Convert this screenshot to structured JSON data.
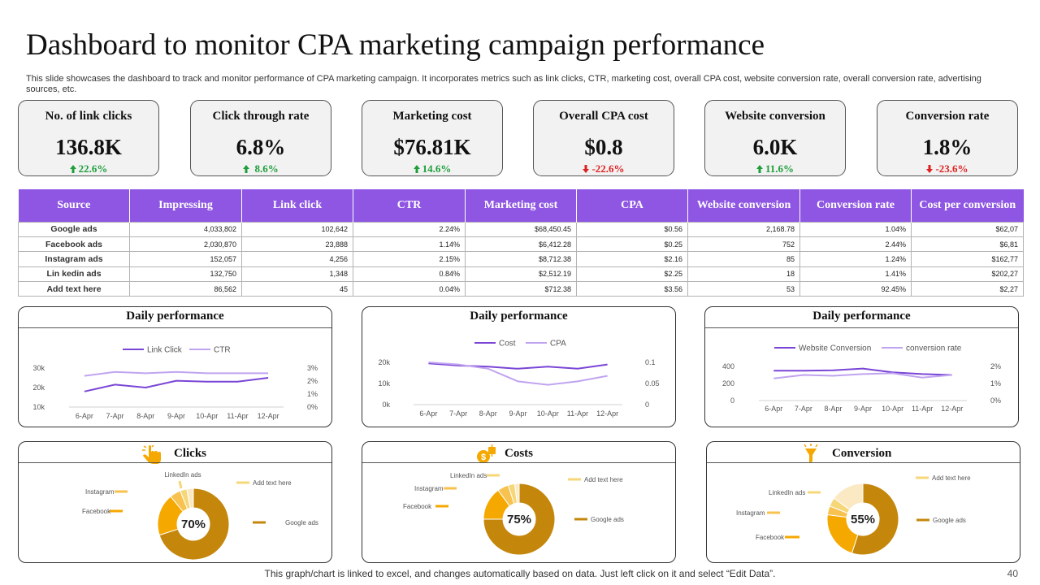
{
  "title": "Dashboard to monitor CPA marketing campaign performance",
  "subtitle": "This slide showcases the dashboard to track and monitor performance of CPA marketing campaign. It incorporates metrics such as link clicks, CTR, marketing cost, overall CPA cost, website conversion rate, overall conversion rate, advertising sources, etc.",
  "colors": {
    "purple": "#8e56e2",
    "up": "#1e9e3a",
    "down": "#e02020",
    "gold": "#c4870c",
    "amber": "#f5a800"
  },
  "kpis": [
    {
      "label": "No. of link clicks",
      "value": "136.8K",
      "change": "22.6%",
      "direction": "up"
    },
    {
      "label": "Click through  rate",
      "value": "6.8%",
      "change": " 8.6%",
      "direction": "up"
    },
    {
      "label": "Marketing cost",
      "value": "$76.81K",
      "change": "14.6%",
      "direction": "up"
    },
    {
      "label": "Overall CPA cost",
      "value": "$0.8",
      "change": "-22.6%",
      "direction": "down"
    },
    {
      "label": "Website conversion",
      "value": "6.0K",
      "change": "11.6%",
      "direction": "up"
    },
    {
      "label": "Conversion rate",
      "value": "1.8%",
      "change": "-23.6%",
      "direction": "down"
    }
  ],
  "table": {
    "headers": [
      "Source",
      "Impressing",
      "Link click",
      "CTR",
      "Marketing cost",
      "CPA",
      "Website conversion",
      "Conversion rate",
      "Cost per conversion"
    ],
    "rows": [
      [
        "Google ads",
        "4,033,802",
        "102,642",
        "2.24%",
        "$68,450.45",
        "$0.56",
        "2,168.78",
        "1.04%",
        "$62,07"
      ],
      [
        "Facebook ads",
        "2,030,870",
        "23,888",
        "1.14%",
        "$6,412.28",
        "$0.25",
        "752",
        "2.44%",
        "$6,81"
      ],
      [
        "Instagram ads",
        "152,057",
        "4,256",
        "2.15%",
        "$8,712.38",
        "$2.16",
        "85",
        "1.24%",
        "$162,77"
      ],
      [
        "Lin kedin ads",
        "132,750",
        "1,348",
        "0.84%",
        "$2,512.19",
        "$2.25",
        "18",
        "1.41%",
        "$202,27"
      ],
      [
        "Add text here",
        "86,562",
        "45",
        "0.04%",
        "$712.38",
        "$3.56",
        "53",
        "92.45%",
        "$2,27"
      ]
    ]
  },
  "chart_data": [
    {
      "type": "line",
      "title": "Daily performance",
      "categories": [
        "6-Apr",
        "7-Apr",
        "8-Apr",
        "9-Apr",
        "10-Apr",
        "11-Apr",
        "12-Apr"
      ],
      "series": [
        {
          "name": "Link Click",
          "axis": "left",
          "values": [
            18000,
            21500,
            20000,
            23500,
            23000,
            23000,
            25000
          ]
        },
        {
          "name": "CTR",
          "axis": "right",
          "values": [
            0.024,
            0.027,
            0.026,
            0.027,
            0.026,
            0.026,
            0.026
          ]
        }
      ],
      "left_axis": {
        "ticks": [
          "10k",
          "20k",
          "30k"
        ],
        "range": [
          10000,
          30000
        ]
      },
      "right_axis": {
        "ticks": [
          "0%",
          "1%",
          "2%",
          "3%"
        ],
        "range": [
          0,
          0.03
        ]
      }
    },
    {
      "type": "line",
      "title": "Daily performance",
      "categories": [
        "6-Apr",
        "7-Apr",
        "8-Apr",
        "9-Apr",
        "10-Apr",
        "11-Apr",
        "12-Apr"
      ],
      "series": [
        {
          "name": "Cost",
          "axis": "left",
          "values": [
            19500,
            18500,
            18000,
            17000,
            18000,
            17000,
            19000
          ]
        },
        {
          "name": "CPA",
          "axis": "right",
          "values": [
            0.1,
            0.095,
            0.085,
            0.055,
            0.047,
            0.055,
            0.068
          ]
        }
      ],
      "left_axis": {
        "ticks": [
          "0k",
          "10k",
          "20k"
        ],
        "range": [
          0,
          20000
        ]
      },
      "right_axis": {
        "ticks": [
          "0",
          "0.05",
          "0.1"
        ],
        "range": [
          0,
          0.1
        ]
      }
    },
    {
      "type": "line",
      "title": "Daily performance",
      "categories": [
        "6-Apr",
        "7-Apr",
        "8-Apr",
        "9-Apr",
        "10-Apr",
        "11-Apr",
        "12-Apr"
      ],
      "series": [
        {
          "name": "Website Conversion",
          "axis": "left",
          "values": [
            350,
            350,
            355,
            375,
            330,
            310,
            300
          ]
        },
        {
          "name": "conversion rate",
          "axis": "right",
          "values": [
            0.013,
            0.015,
            0.0145,
            0.0155,
            0.016,
            0.0135,
            0.015
          ]
        }
      ],
      "left_axis": {
        "ticks": [
          "0",
          "200",
          "400"
        ],
        "range": [
          0,
          400
        ]
      },
      "right_axis": {
        "ticks": [
          "0%",
          "1%",
          "2%"
        ],
        "range": [
          0,
          0.02
        ]
      }
    },
    {
      "type": "pie",
      "title": "Clicks",
      "center_label": "70%",
      "slices": [
        {
          "label": "Google ads",
          "value": 70
        },
        {
          "label": "Facebook",
          "value": 19
        },
        {
          "label": "Instagram",
          "value": 5
        },
        {
          "label": "LinkedIn ads",
          "value": 3
        },
        {
          "label": "Add text here",
          "value": 3
        }
      ]
    },
    {
      "type": "pie",
      "title": "Costs",
      "center_label": "75%",
      "slices": [
        {
          "label": "Google ads",
          "value": 75
        },
        {
          "label": "Facebook",
          "value": 15
        },
        {
          "label": "Instagram",
          "value": 5
        },
        {
          "label": "LinkedIn ads",
          "value": 3
        },
        {
          "label": "Add text here",
          "value": 2
        }
      ]
    },
    {
      "type": "pie",
      "title": "Conversion",
      "center_label": "55%",
      "slices": [
        {
          "label": "Google ads",
          "value": 55
        },
        {
          "label": "Facebook",
          "value": 22
        },
        {
          "label": "Instagram",
          "value": 4
        },
        {
          "label": "LinkedIn ads",
          "value": 4
        },
        {
          "label": "Add text here",
          "value": 15
        }
      ]
    }
  ],
  "footer_note": "This graph/chart is linked to excel, and changes automatically based on data. Just left click on it and select “Edit Data”.",
  "page_number": "40"
}
